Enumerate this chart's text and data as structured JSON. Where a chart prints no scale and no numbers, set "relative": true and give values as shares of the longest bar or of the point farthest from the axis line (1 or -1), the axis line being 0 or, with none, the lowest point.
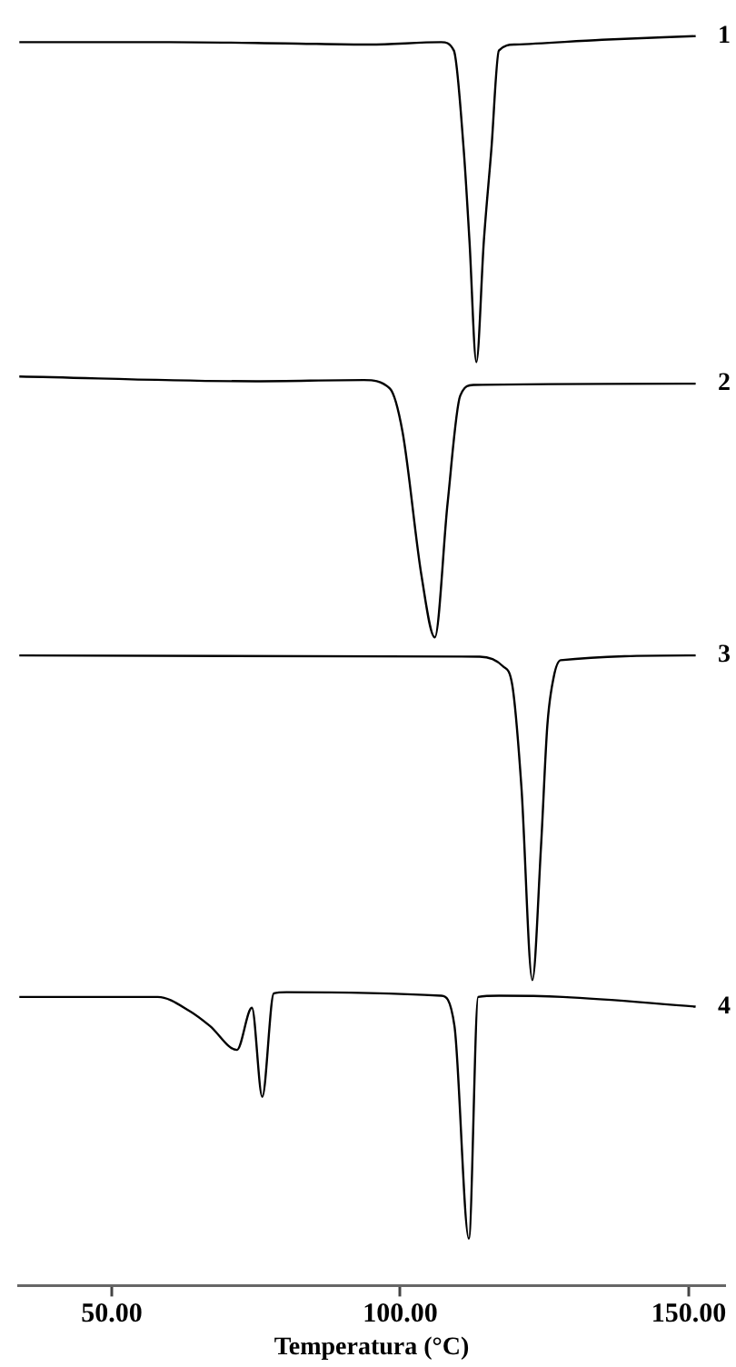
{
  "chart_data": {
    "type": "line",
    "xlabel": "Temperatura (°C)",
    "relative": true,
    "tick_labels": "x",
    "legend": false,
    "grid": false,
    "marker": "none",
    "line_style": "solid",
    "xlim": [
      33.8,
      156.3
    ],
    "xticks": [
      {
        "value": 50,
        "label": "50.00"
      },
      {
        "value": 100,
        "label": "100.00"
      },
      {
        "value": 150,
        "label": "150.00"
      }
    ],
    "series": [
      {
        "name": "1",
        "color": "#000000",
        "x": [
          34,
          60,
          80,
          94.7,
          107.1,
          109.3,
          111,
          112,
          113.2,
          114.5,
          115.8,
          117.1,
          119.9,
          135,
          151.2
        ],
        "values": [
          0.995,
          0.995,
          0.994,
          0.993,
          0.995,
          0.988,
          0.906,
          0.83,
          0.729,
          0.83,
          0.906,
          0.988,
          0.993,
          0.997,
          1.0
        ]
      },
      {
        "name": "2",
        "color": "#000000",
        "x": [
          34,
          75,
          93.7,
          98.2,
          100.4,
          103.7,
          106,
          108.2,
          110.4,
          112.7,
          151.2
        ],
        "values": [
          0.717,
          0.713,
          0.714,
          0.707,
          0.671,
          0.551,
          0.5,
          0.611,
          0.701,
          0.71,
          0.711
        ]
      },
      {
        "name": "3",
        "color": "#000000",
        "x": [
          34,
          113.8,
          117.8,
          119.4,
          121,
          122.9,
          124.4,
          125.5,
          126.6,
          127.8,
          151.2
        ],
        "values": [
          0.485,
          0.484,
          0.476,
          0.461,
          0.376,
          0.215,
          0.326,
          0.427,
          0.467,
          0.481,
          0.485
        ]
      },
      {
        "name": "4",
        "color": "#000000",
        "x": [
          34,
          58,
          63.6,
          67,
          71.7,
          74.3,
          76.1,
          78.1,
          80.3,
          107.1,
          109.4,
          111.9,
          113.5,
          117.1,
          128.2,
          151.2
        ],
        "values": [
          0.201,
          0.201,
          0.189,
          0.177,
          0.157,
          0.192,
          0.118,
          0.204,
          0.205,
          0.202,
          0.177,
          0,
          0.201,
          0.202,
          0.201,
          0.193
        ]
      }
    ]
  }
}
